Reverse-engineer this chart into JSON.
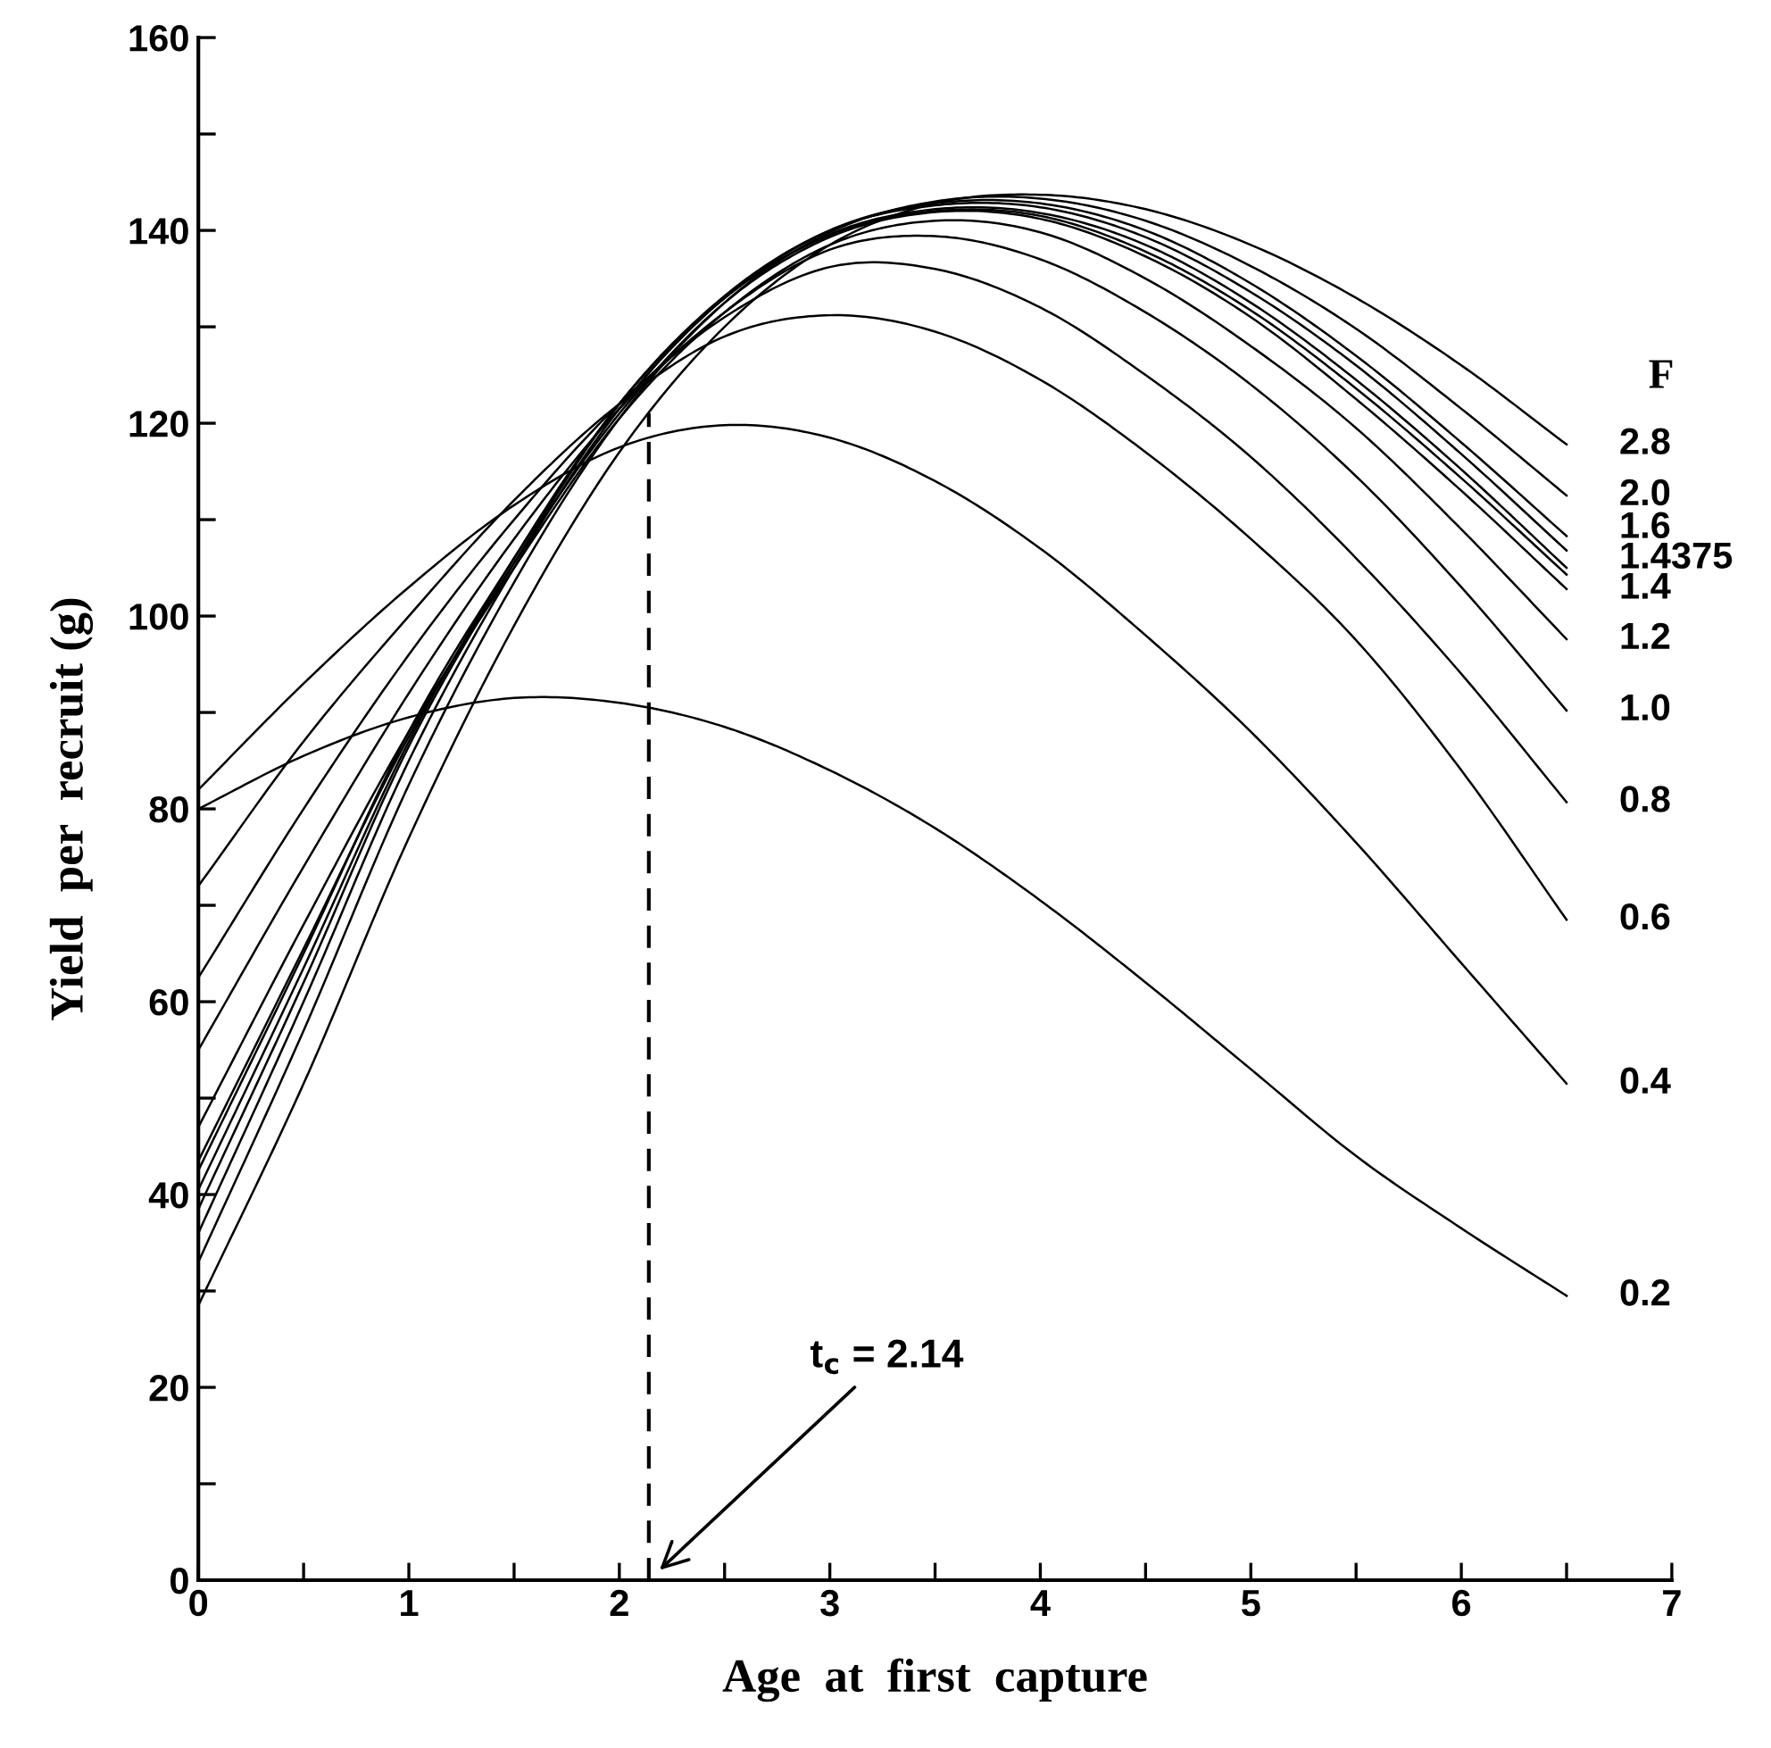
{
  "chart_data": {
    "type": "line",
    "xlabel": "Age  at  first  capture",
    "ylabel": "Yield  per  recruit (g)",
    "legend_title": "F",
    "x": [
      0,
      0.5,
      1,
      1.5,
      2,
      2.5,
      3,
      3.5,
      4,
      4.5,
      5,
      5.5,
      6,
      6.5
    ],
    "series": [
      {
        "name": "0.2",
        "color": "#000000",
        "values": [
          80,
          85.5,
          89.5,
          91.5,
          91,
          88.5,
          84,
          78,
          70.5,
          62,
          53,
          44,
          36.5,
          29.5
        ]
      },
      {
        "name": "0.4",
        "color": "#000000",
        "values": [
          82,
          93,
          103,
          111.5,
          117.5,
          119.8,
          118.5,
          114,
          107,
          98,
          88,
          76.5,
          64,
          51.5
        ]
      },
      {
        "name": "0.6",
        "color": "#000000",
        "values": [
          72,
          87,
          100,
          112,
          122,
          129,
          131.2,
          129.5,
          124.5,
          117,
          108,
          97.5,
          84,
          68.5
        ]
      },
      {
        "name": "0.8",
        "color": "#000000",
        "values": [
          62.5,
          80,
          96,
          110,
          122,
          131,
          136.2,
          136,
          132,
          125,
          116.5,
          106,
          94,
          80.7
        ]
      },
      {
        "name": "1.0",
        "color": "#000000",
        "values": [
          55,
          74,
          92,
          108,
          121.5,
          131.5,
          138,
          139.4,
          137,
          131.5,
          124,
          114.5,
          103,
          90.2
        ]
      },
      {
        "name": "1.2",
        "color": "#000000",
        "values": [
          47,
          68,
          88,
          105,
          120.5,
          131.5,
          138.5,
          141,
          139.8,
          135,
          128,
          119.5,
          109,
          97.6
        ]
      },
      {
        "name": "1.4",
        "color": "#000000",
        "values": [
          43.5,
          65.5,
          87.5,
          105.5,
          121,
          132.5,
          139.3,
          141.9,
          141.2,
          137.3,
          131,
          122.5,
          113,
          102.8
        ]
      },
      {
        "name": "1.4375",
        "color": "#000000",
        "values": [
          42.5,
          65,
          88,
          106,
          122,
          133,
          139.5,
          142,
          141.5,
          137.8,
          131.7,
          123.6,
          114.3,
          104.3
        ]
      },
      {
        "color": "#000000",
        "values": [
          40.5,
          63.5,
          87,
          106,
          122,
          133,
          139.6,
          142.2,
          141.8,
          138.5,
          132.5,
          124.5,
          115.2,
          105
        ]
      },
      {
        "name": "1.6",
        "color": "#000000",
        "values": [
          38.5,
          62,
          86.5,
          105.5,
          122,
          133.2,
          140,
          142.6,
          142.4,
          139.3,
          133.6,
          126,
          116.8,
          106.8
        ]
      },
      {
        "color": "#000000",
        "values": [
          36,
          60,
          85,
          105,
          121.5,
          133,
          140,
          142.8,
          142.8,
          140,
          134.5,
          127,
          118,
          108.3
        ]
      },
      {
        "name": "2.0",
        "color": "#000000",
        "values": [
          33,
          57,
          82.5,
          103.5,
          120.5,
          132.5,
          139.8,
          143,
          143.3,
          141,
          136.3,
          129.8,
          121.5,
          112.5
        ]
      },
      {
        "name": "2.8",
        "color": "#000000",
        "values": [
          28.5,
          51.5,
          77,
          99,
          117,
          130,
          138.5,
          142.8,
          143.7,
          142.2,
          138.5,
          133,
          126,
          117.8
        ]
      }
    ],
    "xlim": [
      0,
      7
    ],
    "ylim": [
      0,
      160
    ],
    "xticks": [
      0,
      {
        "value": 0.5,
        "label": null
      },
      1,
      {
        "value": 1.5,
        "label": null
      },
      2,
      {
        "value": 2.5,
        "label": null
      },
      3,
      {
        "value": 3.5,
        "label": null
      },
      4,
      {
        "value": 4.5,
        "label": null
      },
      5,
      {
        "value": 5.5,
        "label": null
      },
      6,
      {
        "value": 6.5,
        "label": null
      },
      7
    ],
    "yticks": [
      0,
      {
        "value": 10,
        "label": null
      },
      20,
      {
        "value": 30,
        "label": null
      },
      40,
      {
        "value": 50,
        "label": null
      },
      60,
      {
        "value": 70,
        "label": null
      },
      80,
      {
        "value": 90,
        "label": null
      },
      100,
      {
        "value": 110,
        "label": null
      },
      120,
      {
        "value": 130,
        "label": null
      },
      140,
      {
        "value": 150,
        "label": null
      },
      160
    ],
    "ref_lines": [
      {
        "axis": "x",
        "value": 2.14,
        "line_style": "dashed",
        "color": "#000000"
      }
    ],
    "annotations": [
      "t$_{c}$ = 2.14"
    ],
    "grid": false,
    "legend": false,
    "marker": "none",
    "line_style": "solid"
  }
}
